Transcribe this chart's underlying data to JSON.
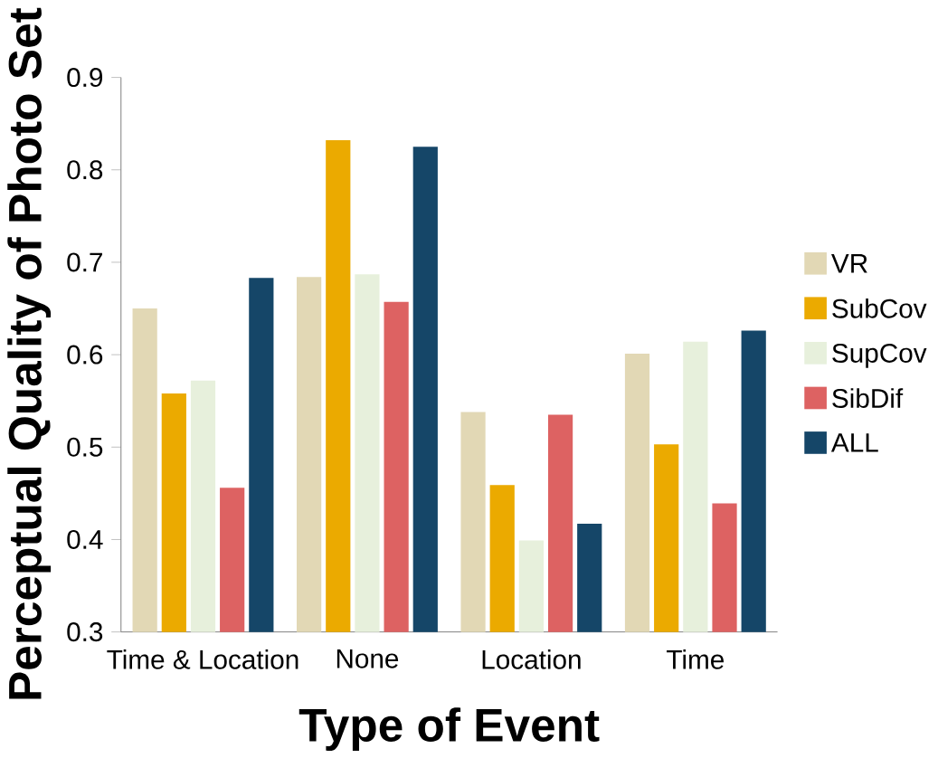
{
  "chart_data": {
    "type": "bar",
    "xlabel": "Type of Event",
    "ylabel": "Perceptual Quality of Photo Set",
    "categories": [
      "Time & Location",
      "None",
      "Location",
      "Time"
    ],
    "series": [
      {
        "name": "VR",
        "color": "#e2d8b5",
        "values": [
          0.65,
          0.684,
          0.538,
          0.601
        ]
      },
      {
        "name": "SubCov",
        "color": "#ebaa00",
        "values": [
          0.558,
          0.832,
          0.459,
          0.503
        ]
      },
      {
        "name": "SupCov",
        "color": "#e7f0dc",
        "values": [
          0.572,
          0.687,
          0.399,
          0.614
        ]
      },
      {
        "name": "SibDif",
        "color": "#dd6262",
        "values": [
          0.456,
          0.657,
          0.535,
          0.439
        ]
      },
      {
        "name": "ALL",
        "color": "#154668",
        "values": [
          0.683,
          0.825,
          0.417,
          0.626
        ]
      }
    ],
    "ylim": [
      0.3,
      0.9
    ],
    "yticks": [
      0.3,
      0.4,
      0.5,
      0.6,
      0.7,
      0.8,
      0.9
    ],
    "grid": false,
    "legend": "right"
  }
}
